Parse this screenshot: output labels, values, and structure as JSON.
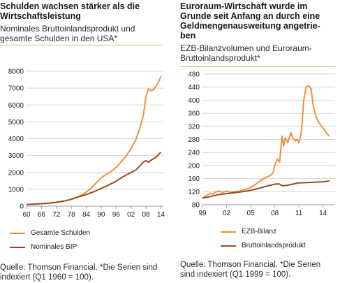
{
  "chart_data": [
    {
      "type": "line",
      "title": "Schulden wachsen stärker als die Wirtschaftsleistung",
      "subtitle": "Nominales Bruttoinlandsprodukt und gesamte Schulden in den USA*",
      "source": "Quelle: Thomson Financial. *Die Serien sind indexiert (Q1 1960 = 100).",
      "xlim": [
        1960,
        2015
      ],
      "ylim": [
        0,
        8000
      ],
      "yticks": [
        0,
        1000,
        2000,
        3000,
        4000,
        5000,
        6000,
        7000,
        8000
      ],
      "xticks": [
        1960,
        1966,
        1972,
        1978,
        1984,
        1990,
        1996,
        2002,
        2008,
        2014
      ],
      "xtick_labels": [
        "60",
        "66",
        "72",
        "78",
        "84",
        "90",
        "96",
        "02",
        "08",
        "14"
      ],
      "grid": "horizontal",
      "legend_position": "bottom",
      "series": [
        {
          "name": "Gesamte Schulden",
          "color": "#f0913a",
          "x": [
            1960,
            1963,
            1966,
            1969,
            1972,
            1975,
            1978,
            1981,
            1984,
            1986,
            1988,
            1990,
            1992,
            1994,
            1996,
            1998,
            2000,
            2002,
            2004,
            2006,
            2007,
            2008,
            2009,
            2010,
            2011,
            2012,
            2013,
            2014
          ],
          "y": [
            100,
            120,
            150,
            180,
            230,
            300,
            410,
            570,
            830,
            1080,
            1380,
            1680,
            1880,
            2060,
            2300,
            2620,
            2980,
            3400,
            3950,
            4850,
            5450,
            6500,
            6950,
            6850,
            6900,
            7100,
            7350,
            7700
          ]
        },
        {
          "name": "Nominales BIP",
          "color": "#9c4a1f",
          "x": [
            1960,
            1963,
            1966,
            1969,
            1972,
            1975,
            1978,
            1981,
            1984,
            1987,
            1990,
            1993,
            1996,
            1999,
            2002,
            2004,
            2006,
            2007,
            2008,
            2009,
            2010,
            2012,
            2014
          ],
          "y": [
            100,
            115,
            145,
            180,
            230,
            300,
            400,
            560,
            690,
            850,
            1050,
            1250,
            1480,
            1760,
            2000,
            2150,
            2450,
            2620,
            2700,
            2600,
            2720,
            2900,
            3200
          ]
        }
      ]
    },
    {
      "type": "line",
      "title": "Euroraum-Wirtschaft wurde im Grunde seit Anfang an durch eine Geldmengenausweitung angetrieben",
      "title_lines": [
        "Euroraum-Wirtschaft wurde im",
        "Grunde seit Anfang an durch eine",
        "Geldmengenausweitung angetrie-",
        "ben"
      ],
      "subtitle": "EZB-Bilanzvolumen und Euroraum-Bruttoinlandsprodukt*",
      "subtitle_lines": [
        "EZB-Bilanzvolumen und Euroraum-",
        "Bruttoinlandsprodukt*"
      ],
      "source": "Quelle: Thomson Financial. *Die Serien sind indexiert (Q1 1999 = 100).",
      "xlim": [
        1999,
        2015.5
      ],
      "ylim": [
        80,
        480
      ],
      "yticks": [
        80,
        120,
        160,
        200,
        240,
        280,
        320,
        360,
        400,
        440,
        480
      ],
      "xticks": [
        1999,
        2002,
        2005,
        2008,
        2011,
        2014
      ],
      "xtick_labels": [
        "99",
        "02",
        "05",
        "08",
        "11",
        "14"
      ],
      "grid": "horizontal",
      "legend_position": "bottom",
      "series": [
        {
          "name": "EZB-Bilanz",
          "color": "#f0913a",
          "x": [
            1999,
            1999.5,
            2000,
            2000.3,
            2000.6,
            2001,
            2001.5,
            2002,
            2002.5,
            2003,
            2003.5,
            2004,
            2004.5,
            2005,
            2005.5,
            2006,
            2006.5,
            2007,
            2007.5,
            2007.8,
            2008,
            2008.3,
            2008.6,
            2008.9,
            2009.1,
            2009.3,
            2009.6,
            2010,
            2010.2,
            2010.5,
            2010.8,
            2011,
            2011.3,
            2011.6,
            2011.9,
            2012.2,
            2012.5,
            2012.8,
            2013.1,
            2013.5,
            2014,
            2014.4,
            2014.8
          ],
          "y": [
            100,
            108,
            115,
            112,
            118,
            122,
            118,
            121,
            118,
            120,
            121,
            125,
            128,
            133,
            140,
            150,
            158,
            165,
            170,
            180,
            200,
            220,
            210,
            290,
            260,
            285,
            270,
            300,
            285,
            275,
            280,
            270,
            300,
            400,
            440,
            445,
            435,
            380,
            350,
            330,
            315,
            300,
            290
          ]
        },
        {
          "name": "Bruttoinlandsprodukt",
          "color": "#9c4a1f",
          "x": [
            1999,
            2000,
            2001,
            2002,
            2003,
            2004,
            2005,
            2006,
            2007,
            2008,
            2008.5,
            2009,
            2009.5,
            2010,
            2011,
            2012,
            2013,
            2014,
            2014.8
          ],
          "y": [
            100,
            105,
            111,
            114,
            117,
            120,
            124,
            130,
            137,
            143,
            144,
            138,
            139,
            142,
            147,
            148,
            149,
            150,
            153
          ]
        }
      ]
    }
  ]
}
